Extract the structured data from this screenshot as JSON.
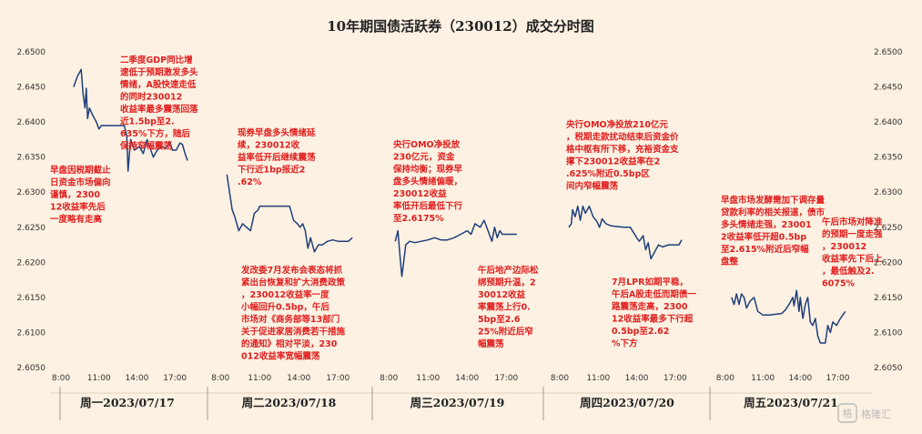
{
  "chart_data": {
    "type": "line",
    "title": "10年期国债活跃券（230012）成交分时图",
    "ylim": [
      2.605,
      2.65
    ],
    "y_ticks": [
      "2.6500",
      "2.6450",
      "2.6400",
      "2.6350",
      "2.6300",
      "2.6250",
      "2.6200",
      "2.6150",
      "2.6100",
      "2.6050"
    ],
    "x_ticks": [
      "8:00",
      "11:00",
      "14:00",
      "17:00"
    ],
    "line_color": "#1f3f7a",
    "note_color": "#e02020",
    "panels": [
      {
        "label": "周一2023/07/17",
        "points": [
          [
            9.0,
            2.645
          ],
          [
            9.3,
            2.6465
          ],
          [
            9.6,
            2.6475
          ],
          [
            9.75,
            2.644
          ],
          [
            9.9,
            2.642
          ],
          [
            10.0,
            2.6448
          ],
          [
            10.1,
            2.6405
          ],
          [
            10.25,
            2.642
          ],
          [
            10.5,
            2.641
          ],
          [
            10.8,
            2.64
          ],
          [
            11.0,
            2.639
          ],
          [
            11.2,
            2.6395
          ],
          [
            11.5,
            2.6395
          ],
          [
            13.0,
            2.6395
          ],
          [
            13.2,
            2.638
          ],
          [
            13.3,
            2.633
          ],
          [
            13.5,
            2.6375
          ],
          [
            13.8,
            2.636
          ],
          [
            14.2,
            2.6365
          ],
          [
            14.5,
            2.6355
          ],
          [
            14.8,
            2.6375
          ],
          [
            15.1,
            2.636
          ],
          [
            15.3,
            2.635
          ],
          [
            15.6,
            2.636
          ],
          [
            16.0,
            2.6365
          ],
          [
            16.3,
            2.6362
          ],
          [
            16.6,
            2.6372
          ],
          [
            16.8,
            2.636
          ],
          [
            17.1,
            2.636
          ],
          [
            17.4,
            2.637
          ],
          [
            17.6,
            2.6368
          ],
          [
            17.8,
            2.6355
          ],
          [
            18.0,
            2.6345
          ]
        ],
        "notes": [
          "早盘因税期截止日资金市场偏向谨慎，230012收益率先后一度略有走高",
          "二季度GDP同比增速低于预期激发多头情绪，A股快速走低的同时230012收益率最多震荡回落近1.5bp至2.635%下方，随后保持窄幅震荡"
        ]
      },
      {
        "label": "周二2023/07/18",
        "points": [
          [
            8.5,
            2.6325
          ],
          [
            8.7,
            2.63
          ],
          [
            8.9,
            2.6275
          ],
          [
            9.1,
            2.6265
          ],
          [
            9.4,
            2.6245
          ],
          [
            9.7,
            2.6255
          ],
          [
            10.0,
            2.625
          ],
          [
            10.3,
            2.6245
          ],
          [
            10.6,
            2.627
          ],
          [
            10.9,
            2.6275
          ],
          [
            11.0,
            2.628
          ],
          [
            11.5,
            2.628
          ],
          [
            12.5,
            2.628
          ],
          [
            13.3,
            2.628
          ],
          [
            13.6,
            2.626
          ],
          [
            13.9,
            2.6255
          ],
          [
            14.1,
            2.625
          ],
          [
            14.3,
            2.6255
          ],
          [
            14.5,
            2.6245
          ],
          [
            14.7,
            2.622
          ],
          [
            14.9,
            2.6235
          ],
          [
            15.2,
            2.6215
          ],
          [
            15.5,
            2.6225
          ],
          [
            15.8,
            2.6225
          ],
          [
            16.2,
            2.623
          ],
          [
            16.6,
            2.6232
          ],
          [
            17.0,
            2.623
          ],
          [
            17.4,
            2.623
          ],
          [
            17.8,
            2.623
          ],
          [
            18.1,
            2.6235
          ]
        ],
        "notes": [
          "现券早盘多头情绪延续，230012收益率低开后继续震荡下行近1bp报近2.62%",
          "发改委7月发布会表态将抓紧出台恢复和扩大消费政策，230012收益率一度小幅回升0.5bp，午后市场对《商务部等13部门关于促进家居消费若干措施的通知》相对平淡，230012收益率宽幅震荡"
        ]
      },
      {
        "label": "周三2023/07/19",
        "points": [
          [
            8.5,
            2.623
          ],
          [
            8.7,
            2.6245
          ],
          [
            8.85,
            2.621
          ],
          [
            9.0,
            2.618
          ],
          [
            9.1,
            2.6195
          ],
          [
            9.3,
            2.6225
          ],
          [
            9.6,
            2.623
          ],
          [
            10.0,
            2.6228
          ],
          [
            10.5,
            2.623
          ],
          [
            11.0,
            2.6232
          ],
          [
            11.5,
            2.6235
          ],
          [
            12.0,
            2.6232
          ],
          [
            12.5,
            2.6232
          ],
          [
            13.0,
            2.6235
          ],
          [
            13.5,
            2.624
          ],
          [
            14.0,
            2.6245
          ],
          [
            14.3,
            2.624
          ],
          [
            14.6,
            2.6255
          ],
          [
            15.0,
            2.625
          ],
          [
            15.3,
            2.626
          ],
          [
            15.6,
            2.6245
          ],
          [
            15.9,
            2.623
          ],
          [
            16.1,
            2.625
          ],
          [
            16.3,
            2.6235
          ],
          [
            16.5,
            2.6245
          ],
          [
            16.7,
            2.624
          ],
          [
            17.0,
            2.624
          ],
          [
            17.4,
            2.624
          ],
          [
            17.8,
            2.624
          ]
        ],
        "notes": [
          "央行OMO净投放230亿元，资金保持均衡；现券早盘多头情绪偏暖，230012收益率低开后最低下行至2.6175%",
          "午后地产边际松绑预期升温，230012收益率震荡上行0.5bp至2.625%附近后窄幅震荡"
        ]
      },
      {
        "label": "周四2023/07/20",
        "points": [
          [
            8.7,
            2.625
          ],
          [
            8.9,
            2.6255
          ],
          [
            9.0,
            2.6275
          ],
          [
            9.2,
            2.6265
          ],
          [
            9.4,
            2.628
          ],
          [
            9.6,
            2.626
          ],
          [
            9.8,
            2.628
          ],
          [
            10.0,
            2.627
          ],
          [
            10.3,
            2.628
          ],
          [
            10.6,
            2.6265
          ],
          [
            10.9,
            2.6258
          ],
          [
            11.1,
            2.625
          ],
          [
            11.3,
            2.6262
          ],
          [
            11.6,
            2.6255
          ],
          [
            12.0,
            2.6252
          ],
          [
            13.0,
            2.625
          ],
          [
            13.5,
            2.625
          ],
          [
            14.0,
            2.6235
          ],
          [
            14.2,
            2.623
          ],
          [
            14.5,
            2.6238
          ],
          [
            14.7,
            2.6218
          ],
          [
            14.9,
            2.6228
          ],
          [
            15.1,
            2.6205
          ],
          [
            15.4,
            2.6215
          ],
          [
            15.7,
            2.6225
          ],
          [
            16.0,
            2.6222
          ],
          [
            16.5,
            2.6225
          ],
          [
            17.0,
            2.6225
          ],
          [
            17.3,
            2.6225
          ],
          [
            17.5,
            2.6232
          ]
        ],
        "notes": [
          "央行OMO净投放210亿元，税期走款扰动结束后资金价格中枢有所下移，充裕资金支撑下230012收益率在2.625%附近0.5bp区间内窄幅震荡",
          "7月LPR如期平稳，午后A股走低而期债一路震荡走高，230012收益率最多下行超0.5bp至2.62%下方"
        ]
      },
      {
        "label": "周五2023/07/21",
        "points": [
          [
            8.5,
            2.615
          ],
          [
            8.7,
            2.614
          ],
          [
            8.9,
            2.6155
          ],
          [
            9.1,
            2.614
          ],
          [
            9.3,
            2.6155
          ],
          [
            9.5,
            2.615
          ],
          [
            9.7,
            2.6135
          ],
          [
            10.0,
            2.6145
          ],
          [
            10.3,
            2.615
          ],
          [
            10.6,
            2.613
          ],
          [
            11.0,
            2.6125
          ],
          [
            11.5,
            2.6125
          ],
          [
            12.5,
            2.6127
          ],
          [
            12.8,
            2.6132
          ],
          [
            13.1,
            2.614
          ],
          [
            13.4,
            2.615
          ],
          [
            13.5,
            2.6138
          ],
          [
            13.7,
            2.616
          ],
          [
            13.9,
            2.613
          ],
          [
            14.0,
            2.615
          ],
          [
            14.2,
            2.612
          ],
          [
            14.4,
            2.614
          ],
          [
            14.6,
            2.615
          ],
          [
            14.8,
            2.6115
          ],
          [
            15.0,
            2.611
          ],
          [
            15.2,
            2.612
          ],
          [
            15.4,
            2.6095
          ],
          [
            15.6,
            2.6085
          ],
          [
            15.8,
            2.6085
          ],
          [
            16.0,
            2.6085
          ],
          [
            16.2,
            2.611
          ],
          [
            16.4,
            2.61
          ],
          [
            16.6,
            2.6115
          ],
          [
            16.9,
            2.611
          ],
          [
            17.2,
            2.612
          ],
          [
            17.6,
            2.613
          ]
        ],
        "notes": [
          "早盘市场发酵需加下调存量贷款利率的相关报道，债市多头情绪走强，230012收益率低开超0.5bp至2.615%附近后窄幅盘整",
          "午后市场对降准的预期一度走强，230012收益率先下后上，最低触及2.6075%"
        ]
      }
    ]
  },
  "watermark": "格隆汇"
}
